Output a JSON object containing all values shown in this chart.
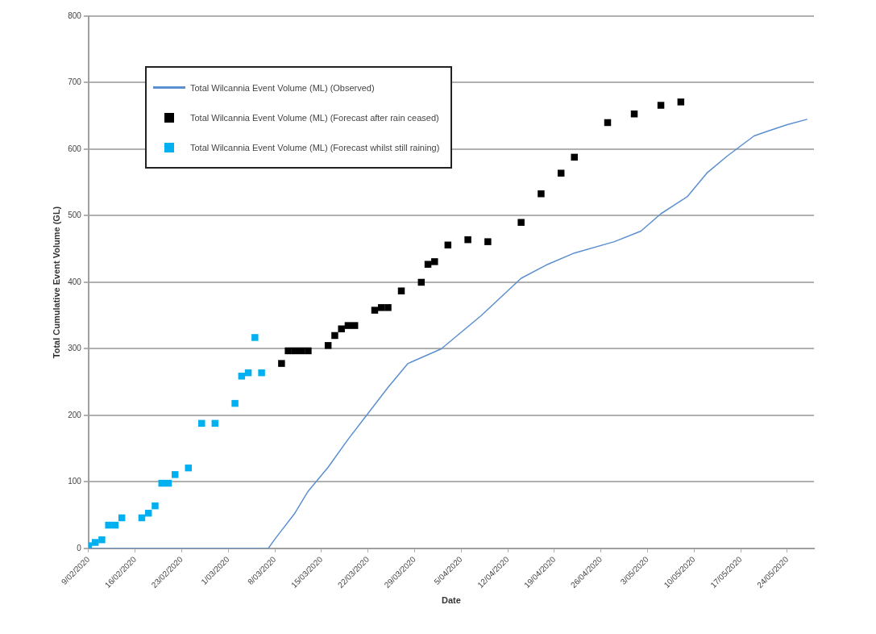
{
  "chart_data": {
    "type": "scatter",
    "xlabel": "Date",
    "ylabel": "Total Cumulative Event Volume (GL)",
    "xlim": [
      "2020-02-09",
      "2020-05-28"
    ],
    "xticks": [
      {
        "value": "2020-02-09",
        "label": "9/02/2020"
      },
      {
        "value": "2020-02-16",
        "label": "16/02/2020"
      },
      {
        "value": "2020-02-23",
        "label": "23/02/2020"
      },
      {
        "value": "2020-03-01",
        "label": "1/03/2020"
      },
      {
        "value": "2020-03-08",
        "label": "8/03/2020"
      },
      {
        "value": "2020-03-15",
        "label": "15/03/2020"
      },
      {
        "value": "2020-03-22",
        "label": "22/03/2020"
      },
      {
        "value": "2020-03-29",
        "label": "29/03/2020"
      },
      {
        "value": "2020-04-05",
        "label": "5/04/2020"
      },
      {
        "value": "2020-04-12",
        "label": "12/04/2020"
      },
      {
        "value": "2020-04-19",
        "label": "19/04/2020"
      },
      {
        "value": "2020-04-26",
        "label": "26/04/2020"
      },
      {
        "value": "2020-05-03",
        "label": "3/05/2020"
      },
      {
        "value": "2020-05-10",
        "label": "10/05/2020"
      },
      {
        "value": "2020-05-17",
        "label": "17/05/2020"
      },
      {
        "value": "2020-05-24",
        "label": "24/05/2020"
      }
    ],
    "ylim": [
      0,
      800
    ],
    "yticks": [
      0,
      100,
      200,
      300,
      400,
      500,
      600,
      700,
      800
    ],
    "grid": "y",
    "legend": "top left",
    "series": [
      {
        "name": "Total Wilcannia Event Volume (ML) (Observed)",
        "type": "line",
        "marker": "none",
        "line_style": "solid",
        "color": "#5b8fd0",
        "x": [
          "2020-02-09",
          "2020-02-20",
          "2020-03-01",
          "2020-03-07",
          "2020-03-08",
          "2020-03-09",
          "2020-03-11",
          "2020-03-13",
          "2020-03-16",
          "2020-03-19",
          "2020-03-22",
          "2020-03-25",
          "2020-03-28",
          "2020-04-02",
          "2020-04-08",
          "2020-04-14",
          "2020-04-18",
          "2020-04-22",
          "2020-04-28",
          "2020-05-02",
          "2020-05-05",
          "2020-05-09",
          "2020-05-12",
          "2020-05-15",
          "2020-05-19",
          "2020-05-21",
          "2020-05-24",
          "2020-05-27"
        ],
        "values": [
          0,
          0,
          0,
          0,
          14,
          27,
          53,
          86,
          122,
          164,
          203,
          242,
          278,
          300,
          350,
          406,
          427,
          444,
          461,
          477,
          503,
          529,
          565,
          590,
          620,
          627,
          637,
          645
        ]
      },
      {
        "name": "Total Wilcannia Event Volume (ML) (Forecast after rain ceased)",
        "type": "scatter",
        "marker": "square",
        "color": "#000000",
        "x": [
          "2020-03-09",
          "2020-03-10",
          "2020-03-11",
          "2020-03-12",
          "2020-03-13",
          "2020-03-16",
          "2020-03-17",
          "2020-03-18",
          "2020-03-19",
          "2020-03-20",
          "2020-03-23",
          "2020-03-24",
          "2020-03-25",
          "2020-03-27",
          "2020-03-30",
          "2020-03-31",
          "2020-04-01",
          "2020-04-03",
          "2020-04-06",
          "2020-04-09",
          "2020-04-14",
          "2020-04-17",
          "2020-04-20",
          "2020-04-22",
          "2020-04-27",
          "2020-05-01",
          "2020-05-05",
          "2020-05-08"
        ],
        "values": [
          278,
          297,
          297,
          297,
          297,
          305,
          320,
          330,
          335,
          335,
          358,
          362,
          362,
          387,
          400,
          427,
          431,
          456,
          464,
          461,
          490,
          533,
          564,
          588,
          640,
          653,
          666,
          671
        ]
      },
      {
        "name": "Total Wilcannia Event Volume (ML) (Forecast whilst still raining)",
        "type": "scatter",
        "marker": "square",
        "color": "#00b0f0",
        "x": [
          "2020-02-09",
          "2020-02-10",
          "2020-02-11",
          "2020-02-12",
          "2020-02-13",
          "2020-02-14",
          "2020-02-17",
          "2020-02-18",
          "2020-02-19",
          "2020-02-20",
          "2020-02-21",
          "2020-02-22",
          "2020-02-24",
          "2020-02-26",
          "2020-02-28",
          "2020-03-02",
          "2020-03-03",
          "2020-03-04",
          "2020-03-05",
          "2020-03-06"
        ],
        "values": [
          4,
          9,
          13,
          35,
          35,
          46,
          46,
          53,
          64,
          98,
          98,
          111,
          121,
          188,
          188,
          218,
          259,
          264,
          317,
          264
        ]
      }
    ]
  }
}
